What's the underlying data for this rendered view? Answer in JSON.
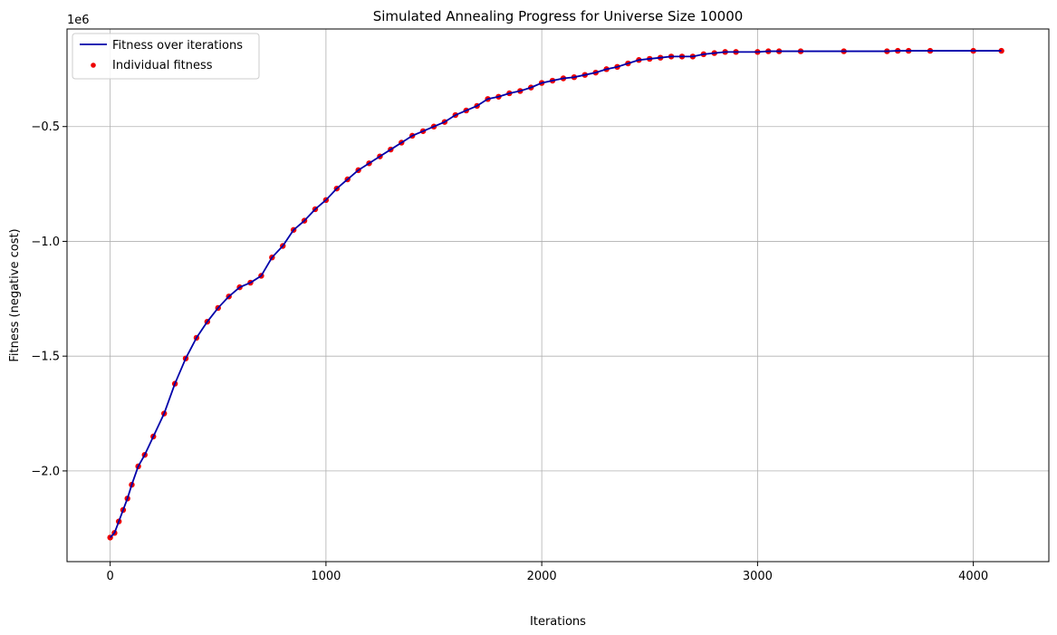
{
  "chart_data": {
    "type": "line",
    "title": "Simulated Annealing Progress for Universe Size 10000",
    "xlabel": "Iterations",
    "ylabel": "Fitness (negative cost)",
    "y_offset_label": "1e6",
    "xlim": [
      -200,
      4350
    ],
    "ylim": [
      -2.395,
      -0.075
    ],
    "x_scale": "linear",
    "y_scale": "linear",
    "y_units_multiplier": 1000000,
    "grid": true,
    "legend_position": "upper left",
    "x_ticks": [
      {
        "value": 0,
        "label": "0"
      },
      {
        "value": 1000,
        "label": "1000"
      },
      {
        "value": 2000,
        "label": "2000"
      },
      {
        "value": 3000,
        "label": "3000"
      },
      {
        "value": 4000,
        "label": "4000"
      }
    ],
    "y_ticks": [
      {
        "value": -2.0,
        "label": "−2.0"
      },
      {
        "value": -1.5,
        "label": "−1.5"
      },
      {
        "value": -1.0,
        "label": "−1.0"
      },
      {
        "value": -0.5,
        "label": "−0.5"
      }
    ],
    "series": [
      {
        "name": "Fitness over iterations",
        "kind": "line",
        "color": "#0000aa",
        "x": [
          0,
          20,
          40,
          60,
          80,
          100,
          130,
          160,
          200,
          250,
          300,
          350,
          400,
          450,
          500,
          550,
          600,
          650,
          700,
          750,
          800,
          850,
          900,
          950,
          1000,
          1050,
          1100,
          1150,
          1200,
          1250,
          1300,
          1350,
          1400,
          1450,
          1500,
          1550,
          1600,
          1650,
          1700,
          1750,
          1800,
          1850,
          1900,
          1950,
          2000,
          2050,
          2100,
          2150,
          2200,
          2250,
          2300,
          2350,
          2400,
          2450,
          2500,
          2550,
          2600,
          2650,
          2700,
          2750,
          2800,
          2850,
          2900,
          3000,
          3050,
          3100,
          3200,
          3400,
          3600,
          3650,
          3700,
          3800,
          4000,
          4130
        ],
        "y": [
          -2.29,
          -2.27,
          -2.22,
          -2.17,
          -2.12,
          -2.06,
          -1.98,
          -1.93,
          -1.85,
          -1.75,
          -1.62,
          -1.51,
          -1.42,
          -1.35,
          -1.29,
          -1.24,
          -1.2,
          -1.18,
          -1.15,
          -1.07,
          -1.02,
          -0.95,
          -0.91,
          -0.86,
          -0.82,
          -0.77,
          -0.73,
          -0.69,
          -0.66,
          -0.63,
          -0.6,
          -0.57,
          -0.54,
          -0.52,
          -0.5,
          -0.48,
          -0.45,
          -0.43,
          -0.41,
          -0.38,
          -0.37,
          -0.355,
          -0.345,
          -0.33,
          -0.31,
          -0.3,
          -0.29,
          -0.285,
          -0.275,
          -0.265,
          -0.25,
          -0.24,
          -0.225,
          -0.21,
          -0.205,
          -0.2,
          -0.195,
          -0.195,
          -0.195,
          -0.185,
          -0.18,
          -0.175,
          -0.175,
          -0.175,
          -0.172,
          -0.172,
          -0.172,
          -0.172,
          -0.172,
          -0.17,
          -0.17,
          -0.17,
          -0.17,
          -0.17
        ]
      },
      {
        "name": "Individual fitness",
        "kind": "scatter",
        "color": "#ee0000",
        "note_same_points": true
      }
    ]
  }
}
